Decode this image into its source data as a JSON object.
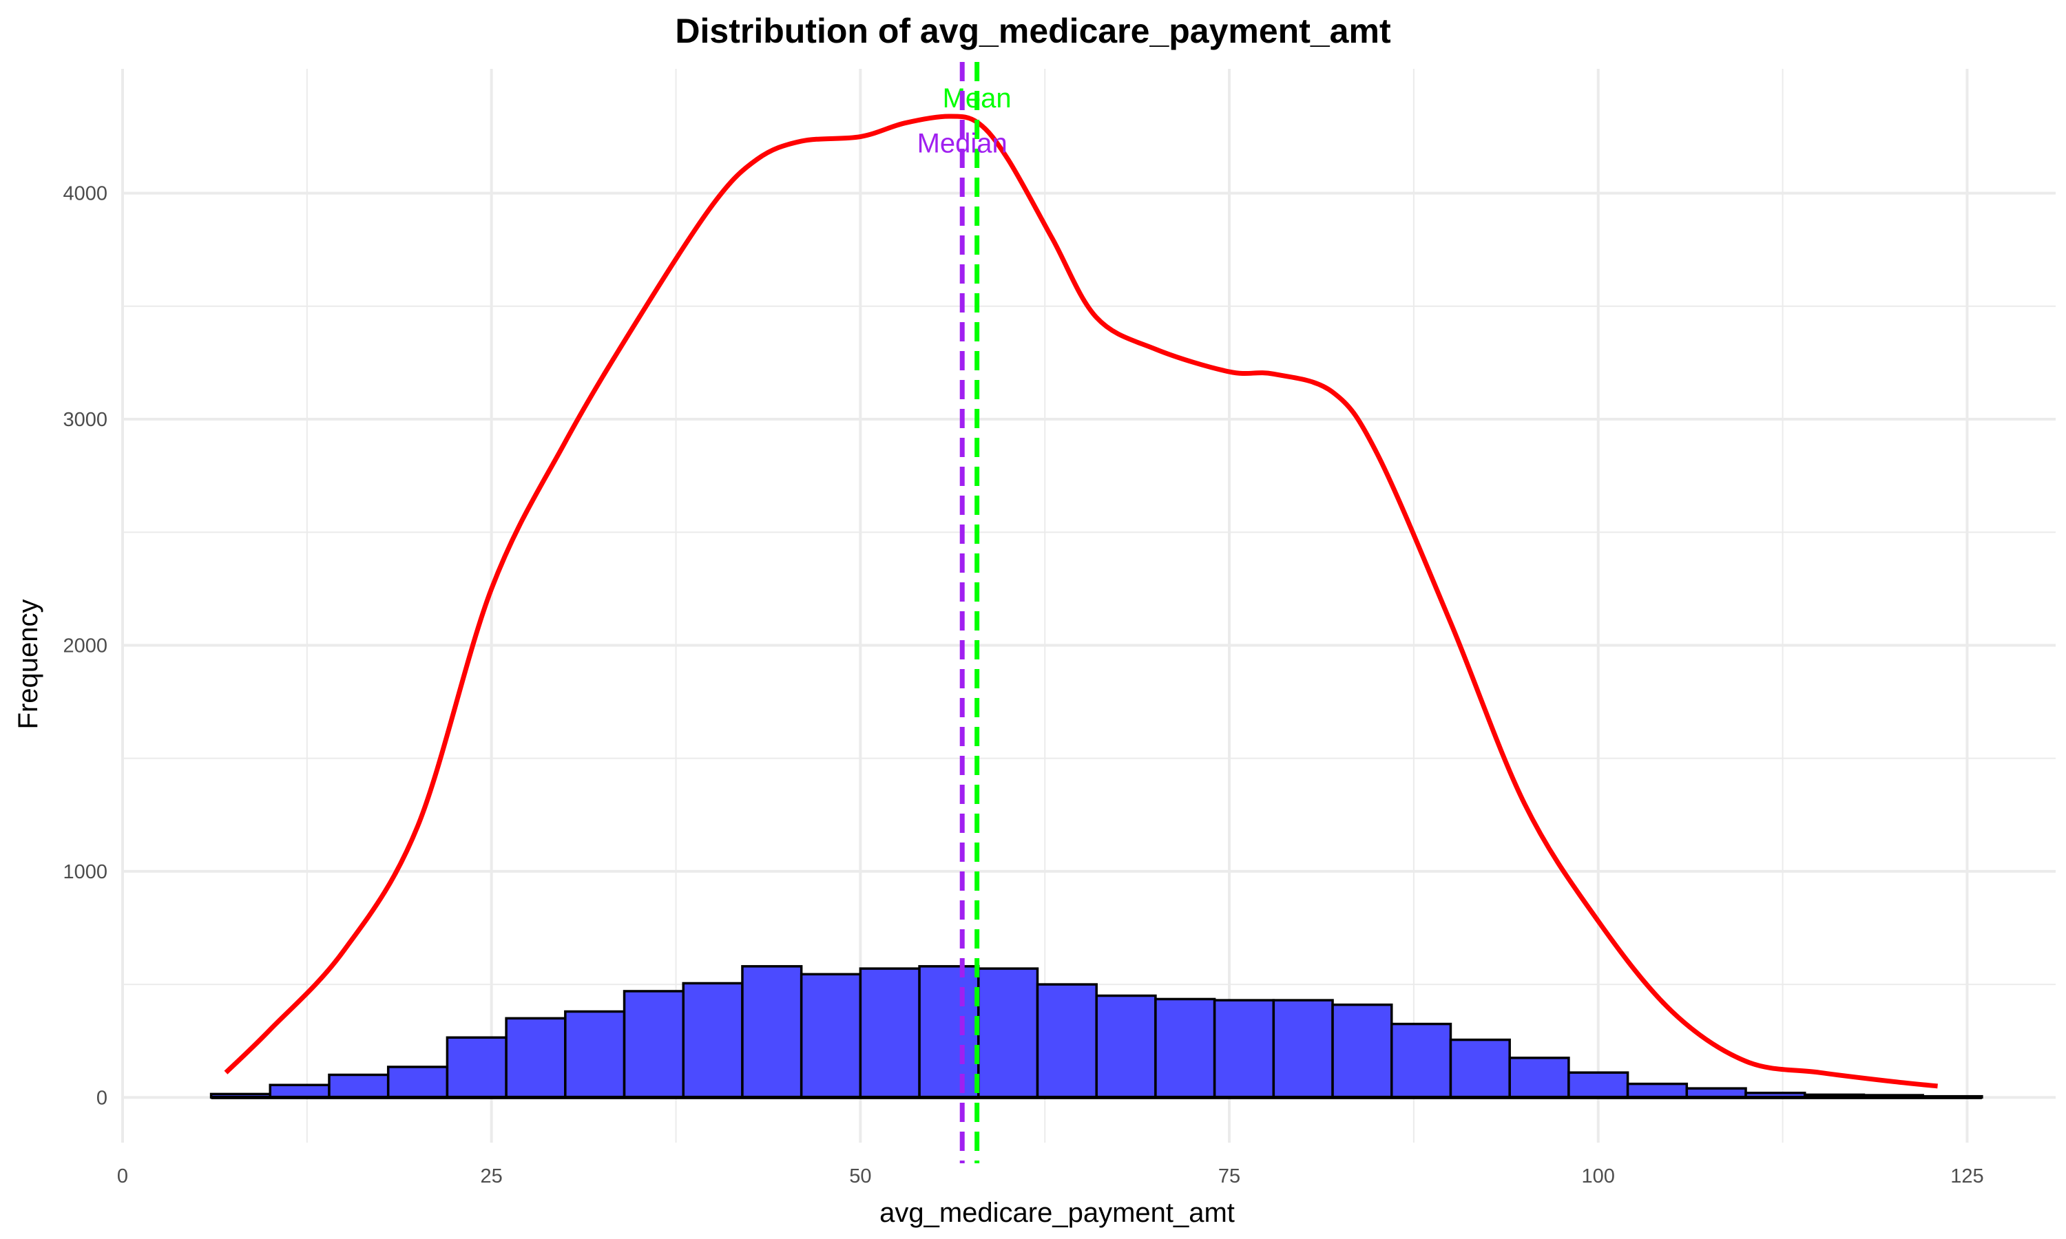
{
  "chart_data": {
    "type": "bar",
    "title": "Distribution of avg_medicare_payment_amt",
    "xlabel": "avg_medicare_payment_amt",
    "ylabel": "Frequency",
    "xlim": [
      0,
      131
    ],
    "ylim": [
      -200,
      4550
    ],
    "x_ticks": [
      0,
      25,
      50,
      75,
      100,
      125
    ],
    "y_ticks": [
      0,
      1000,
      2000,
      3000,
      4000
    ],
    "grid": true,
    "legend": "none",
    "bin_width": 4,
    "bins": [
      {
        "start": 6,
        "end": 10,
        "count": 15
      },
      {
        "start": 10,
        "end": 14,
        "count": 55
      },
      {
        "start": 14,
        "end": 18,
        "count": 100
      },
      {
        "start": 18,
        "end": 22,
        "count": 135
      },
      {
        "start": 22,
        "end": 26,
        "count": 265
      },
      {
        "start": 26,
        "end": 30,
        "count": 350
      },
      {
        "start": 30,
        "end": 34,
        "count": 380
      },
      {
        "start": 34,
        "end": 38,
        "count": 470
      },
      {
        "start": 38,
        "end": 42,
        "count": 505
      },
      {
        "start": 42,
        "end": 46,
        "count": 580
      },
      {
        "start": 46,
        "end": 50,
        "count": 545
      },
      {
        "start": 50,
        "end": 54,
        "count": 570
      },
      {
        "start": 54,
        "end": 58,
        "count": 580
      },
      {
        "start": 58,
        "end": 62,
        "count": 570
      },
      {
        "start": 62,
        "end": 66,
        "count": 500
      },
      {
        "start": 66,
        "end": 70,
        "count": 450
      },
      {
        "start": 70,
        "end": 74,
        "count": 435
      },
      {
        "start": 74,
        "end": 78,
        "count": 430
      },
      {
        "start": 78,
        "end": 82,
        "count": 430
      },
      {
        "start": 82,
        "end": 86,
        "count": 410
      },
      {
        "start": 86,
        "end": 90,
        "count": 325
      },
      {
        "start": 90,
        "end": 94,
        "count": 255
      },
      {
        "start": 94,
        "end": 98,
        "count": 175
      },
      {
        "start": 98,
        "end": 102,
        "count": 110
      },
      {
        "start": 102,
        "end": 106,
        "count": 60
      },
      {
        "start": 106,
        "end": 110,
        "count": 40
      },
      {
        "start": 110,
        "end": 114,
        "count": 20
      },
      {
        "start": 114,
        "end": 118,
        "count": 12
      },
      {
        "start": 118,
        "end": 122,
        "count": 10
      },
      {
        "start": 122,
        "end": 126,
        "count": 5
      }
    ],
    "density_curve": {
      "x": [
        7,
        10,
        15,
        20,
        25,
        30,
        35,
        40,
        43,
        46,
        50,
        53,
        56,
        58,
        60,
        63,
        66,
        70,
        75,
        78,
        82,
        85,
        90,
        95,
        100,
        105,
        110,
        115,
        120,
        123
      ],
      "y": [
        110,
        300,
        650,
        1200,
        2250,
        2900,
        3450,
        3950,
        4150,
        4230,
        4250,
        4310,
        4340,
        4310,
        4150,
        3800,
        3450,
        3310,
        3210,
        3200,
        3120,
        2850,
        2100,
        1300,
        780,
        380,
        160,
        110,
        70,
        50
      ]
    },
    "reference_lines": [
      {
        "label": "Mean",
        "x": 57.9,
        "color": "#00ff00",
        "label_y": 4380
      },
      {
        "label": "Median",
        "x": 56.9,
        "color": "#a020f0",
        "label_y": 4180
      }
    ],
    "colors": {
      "bar_fill": "#4b4bff",
      "bar_stroke": "#000000",
      "density": "#ff0000",
      "grid": "#ebebeb"
    }
  }
}
